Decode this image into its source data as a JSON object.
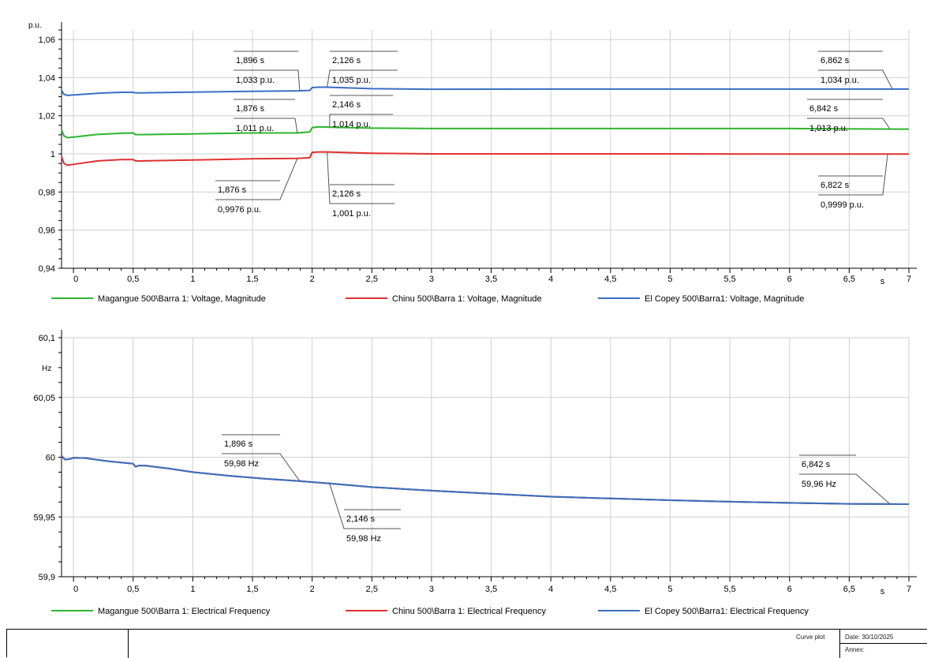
{
  "chart_data": [
    {
      "type": "line",
      "y_unit": "p.u.",
      "x_unit": "s",
      "xlim": [
        -0.1,
        7
      ],
      "ylim": [
        0.94,
        1.065
      ],
      "x_ticks": [
        "0",
        "0,5",
        "1",
        "1,5",
        "2",
        "2,5",
        "3",
        "3,5",
        "4",
        "4,5",
        "5",
        "5,5",
        "6",
        "6,5",
        "7"
      ],
      "y_ticks": [
        "1,06",
        "1,04",
        "1,02",
        "1",
        "0,98",
        "0,96",
        "0,94"
      ],
      "grid": true,
      "legend_position": "bottom",
      "series": [
        {
          "name": "Magangue 500\\Barra 1: Voltage, Magnitude",
          "color": "#2db52d",
          "x": [
            -0.1,
            -0.08,
            -0.05,
            0.0,
            0.2,
            0.4,
            0.5,
            0.52,
            0.55,
            1.0,
            1.5,
            1.876,
            1.98,
            2.0,
            2.05,
            2.146,
            2.5,
            3.0,
            4.0,
            5.0,
            6.0,
            6.842,
            7.0
          ],
          "y": [
            1.0125,
            1.0095,
            1.0085,
            1.0088,
            1.0102,
            1.0108,
            1.011,
            1.0101,
            1.0101,
            1.0105,
            1.011,
            1.011,
            1.0115,
            1.0138,
            1.0142,
            1.014,
            1.0135,
            1.0133,
            1.0133,
            1.0133,
            1.0133,
            1.013,
            1.013
          ]
        },
        {
          "name": "Chinu 500\\Barra 1: Voltage, Magnitude",
          "color": "#e03030",
          "x": [
            -0.1,
            -0.08,
            -0.05,
            0.0,
            0.2,
            0.4,
            0.5,
            0.52,
            0.55,
            1.0,
            1.5,
            1.876,
            1.98,
            2.0,
            2.05,
            2.126,
            2.5,
            3.0,
            4.0,
            5.0,
            6.0,
            6.822,
            7.0
          ],
          "y": [
            0.9985,
            0.995,
            0.994,
            0.9945,
            0.9963,
            0.997,
            0.997,
            0.9963,
            0.9963,
            0.9968,
            0.9974,
            0.9976,
            0.998,
            1.0008,
            1.001,
            1.001,
            1.0003,
            1.0,
            1.0,
            1.0,
            0.9999,
            0.9999,
            0.9999
          ]
        },
        {
          "name": "El Copey 500\\Barra1: Voltage, Magnitude",
          "color": "#3a6fc4",
          "x": [
            -0.1,
            -0.08,
            -0.05,
            0.0,
            0.2,
            0.4,
            0.5,
            0.52,
            0.55,
            1.0,
            1.5,
            1.896,
            1.98,
            2.0,
            2.05,
            2.126,
            2.5,
            3.0,
            4.0,
            5.0,
            6.0,
            6.862,
            7.0
          ],
          "y": [
            1.0335,
            1.0312,
            1.0307,
            1.0309,
            1.0318,
            1.0323,
            1.0323,
            1.032,
            1.032,
            1.0324,
            1.0328,
            1.0331,
            1.0333,
            1.0348,
            1.035,
            1.035,
            1.0342,
            1.0339,
            1.034,
            1.034,
            1.034,
            1.034,
            1.034
          ]
        }
      ],
      "annotations": [
        {
          "time": "1,896 s",
          "value": "1,033 p.u.",
          "x": 1.896,
          "y": 1.033,
          "side": "left"
        },
        {
          "time": "2,126 s",
          "value": "1,035 p.u.",
          "x": 2.126,
          "y": 1.035,
          "side": "right"
        },
        {
          "time": "6,862 s",
          "value": "1,034 p.u.",
          "x": 6.862,
          "y": 1.034,
          "side": "left"
        },
        {
          "time": "1,876 s",
          "value": "1,011 p.u.",
          "x": 1.876,
          "y": 1.011,
          "side": "left"
        },
        {
          "time": "2,146 s",
          "value": "1,014 p.u.",
          "x": 2.146,
          "y": 1.014,
          "side": "right"
        },
        {
          "time": "6,842 s",
          "value": "1,013 p.u.",
          "x": 6.842,
          "y": 1.013,
          "side": "left"
        },
        {
          "time": "1,876 s",
          "value": "0,9976 p.u.",
          "x": 1.876,
          "y": 0.9976,
          "side": "left"
        },
        {
          "time": "2,126 s",
          "value": "1,001 p.u.",
          "x": 2.126,
          "y": 1.001,
          "side": "right"
        },
        {
          "time": "6,822 s",
          "value": "0,9999 p.u.",
          "x": 6.822,
          "y": 0.9999,
          "side": "left"
        }
      ]
    },
    {
      "type": "line",
      "y_unit": "Hz",
      "x_unit": "s",
      "xlim": [
        -0.1,
        7
      ],
      "ylim": [
        59.9,
        60.1
      ],
      "x_ticks": [
        "0",
        "0,5",
        "1",
        "1,5",
        "2",
        "2,5",
        "3",
        "3,5",
        "4",
        "4,5",
        "5",
        "5,5",
        "6",
        "6,5",
        "7"
      ],
      "y_ticks": [
        "60,1",
        "60,05",
        "60",
        "59,95",
        "59,9"
      ],
      "grid": true,
      "legend_position": "bottom",
      "series": [
        {
          "name": "Magangue 500\\Barra 1: Electrical Frequency",
          "color": "#2db52d",
          "x": [
            -0.1,
            -0.07,
            -0.03,
            0.0,
            0.1,
            0.3,
            0.5,
            0.52,
            0.55,
            0.6,
            0.8,
            1.0,
            1.3,
            1.6,
            1.896,
            2.146,
            2.5,
            3.0,
            3.5,
            4.0,
            4.5,
            5.0,
            5.5,
            6.0,
            6.5,
            6.842,
            7.0
          ],
          "y": [
            60.001,
            59.998,
            59.9985,
            59.9995,
            59.9993,
            59.9965,
            59.9945,
            59.992,
            59.993,
            59.993,
            59.9905,
            59.9875,
            59.9845,
            59.982,
            59.98,
            59.978,
            59.975,
            59.972,
            59.9695,
            59.967,
            59.9655,
            59.964,
            59.9628,
            59.9618,
            59.961,
            59.9608,
            59.9607
          ]
        },
        {
          "name": "Chinu 500\\Barra 1: Electrical Frequency",
          "color": "#e03030",
          "x": [
            -0.1,
            -0.07,
            -0.03,
            0.0,
            0.1,
            0.3,
            0.5,
            0.52,
            0.55,
            0.6,
            0.8,
            1.0,
            1.3,
            1.6,
            1.896,
            2.146,
            2.5,
            3.0,
            3.5,
            4.0,
            4.5,
            5.0,
            5.5,
            6.0,
            6.5,
            6.842,
            7.0
          ],
          "y": [
            60.001,
            59.998,
            59.9985,
            59.9995,
            59.9993,
            59.9965,
            59.9945,
            59.992,
            59.993,
            59.993,
            59.9905,
            59.9875,
            59.9845,
            59.982,
            59.98,
            59.978,
            59.975,
            59.972,
            59.9695,
            59.967,
            59.9655,
            59.964,
            59.9628,
            59.9618,
            59.961,
            59.9608,
            59.9607
          ]
        },
        {
          "name": "El Copey 500\\Barra1: Electrical Frequency",
          "color": "#3a6fc4",
          "x": [
            -0.1,
            -0.07,
            -0.03,
            0.0,
            0.1,
            0.3,
            0.5,
            0.52,
            0.55,
            0.6,
            0.8,
            1.0,
            1.3,
            1.6,
            1.896,
            2.146,
            2.5,
            3.0,
            3.5,
            4.0,
            4.5,
            5.0,
            5.5,
            6.0,
            6.5,
            6.842,
            7.0
          ],
          "y": [
            60.001,
            59.998,
            59.9985,
            59.9995,
            59.9993,
            59.9965,
            59.9945,
            59.992,
            59.993,
            59.993,
            59.9905,
            59.9875,
            59.9845,
            59.982,
            59.98,
            59.978,
            59.975,
            59.972,
            59.9695,
            59.967,
            59.9655,
            59.964,
            59.9628,
            59.9618,
            59.961,
            59.9608,
            59.9607
          ]
        }
      ],
      "annotations": [
        {
          "time": "1,896 s",
          "value": "59,98 Hz",
          "x": 1.896,
          "y": 59.98,
          "side": "left"
        },
        {
          "time": "2,146 s",
          "value": "59,98 Hz",
          "x": 2.146,
          "y": 59.978,
          "side": "right"
        },
        {
          "time": "6,842 s",
          "value": "59,96 Hz",
          "x": 6.842,
          "y": 59.9608,
          "side": "left"
        }
      ]
    }
  ],
  "footer": {
    "curve_plot": "Curve plot",
    "date": "Date: 30/10/2025",
    "annex": "Annex:"
  }
}
